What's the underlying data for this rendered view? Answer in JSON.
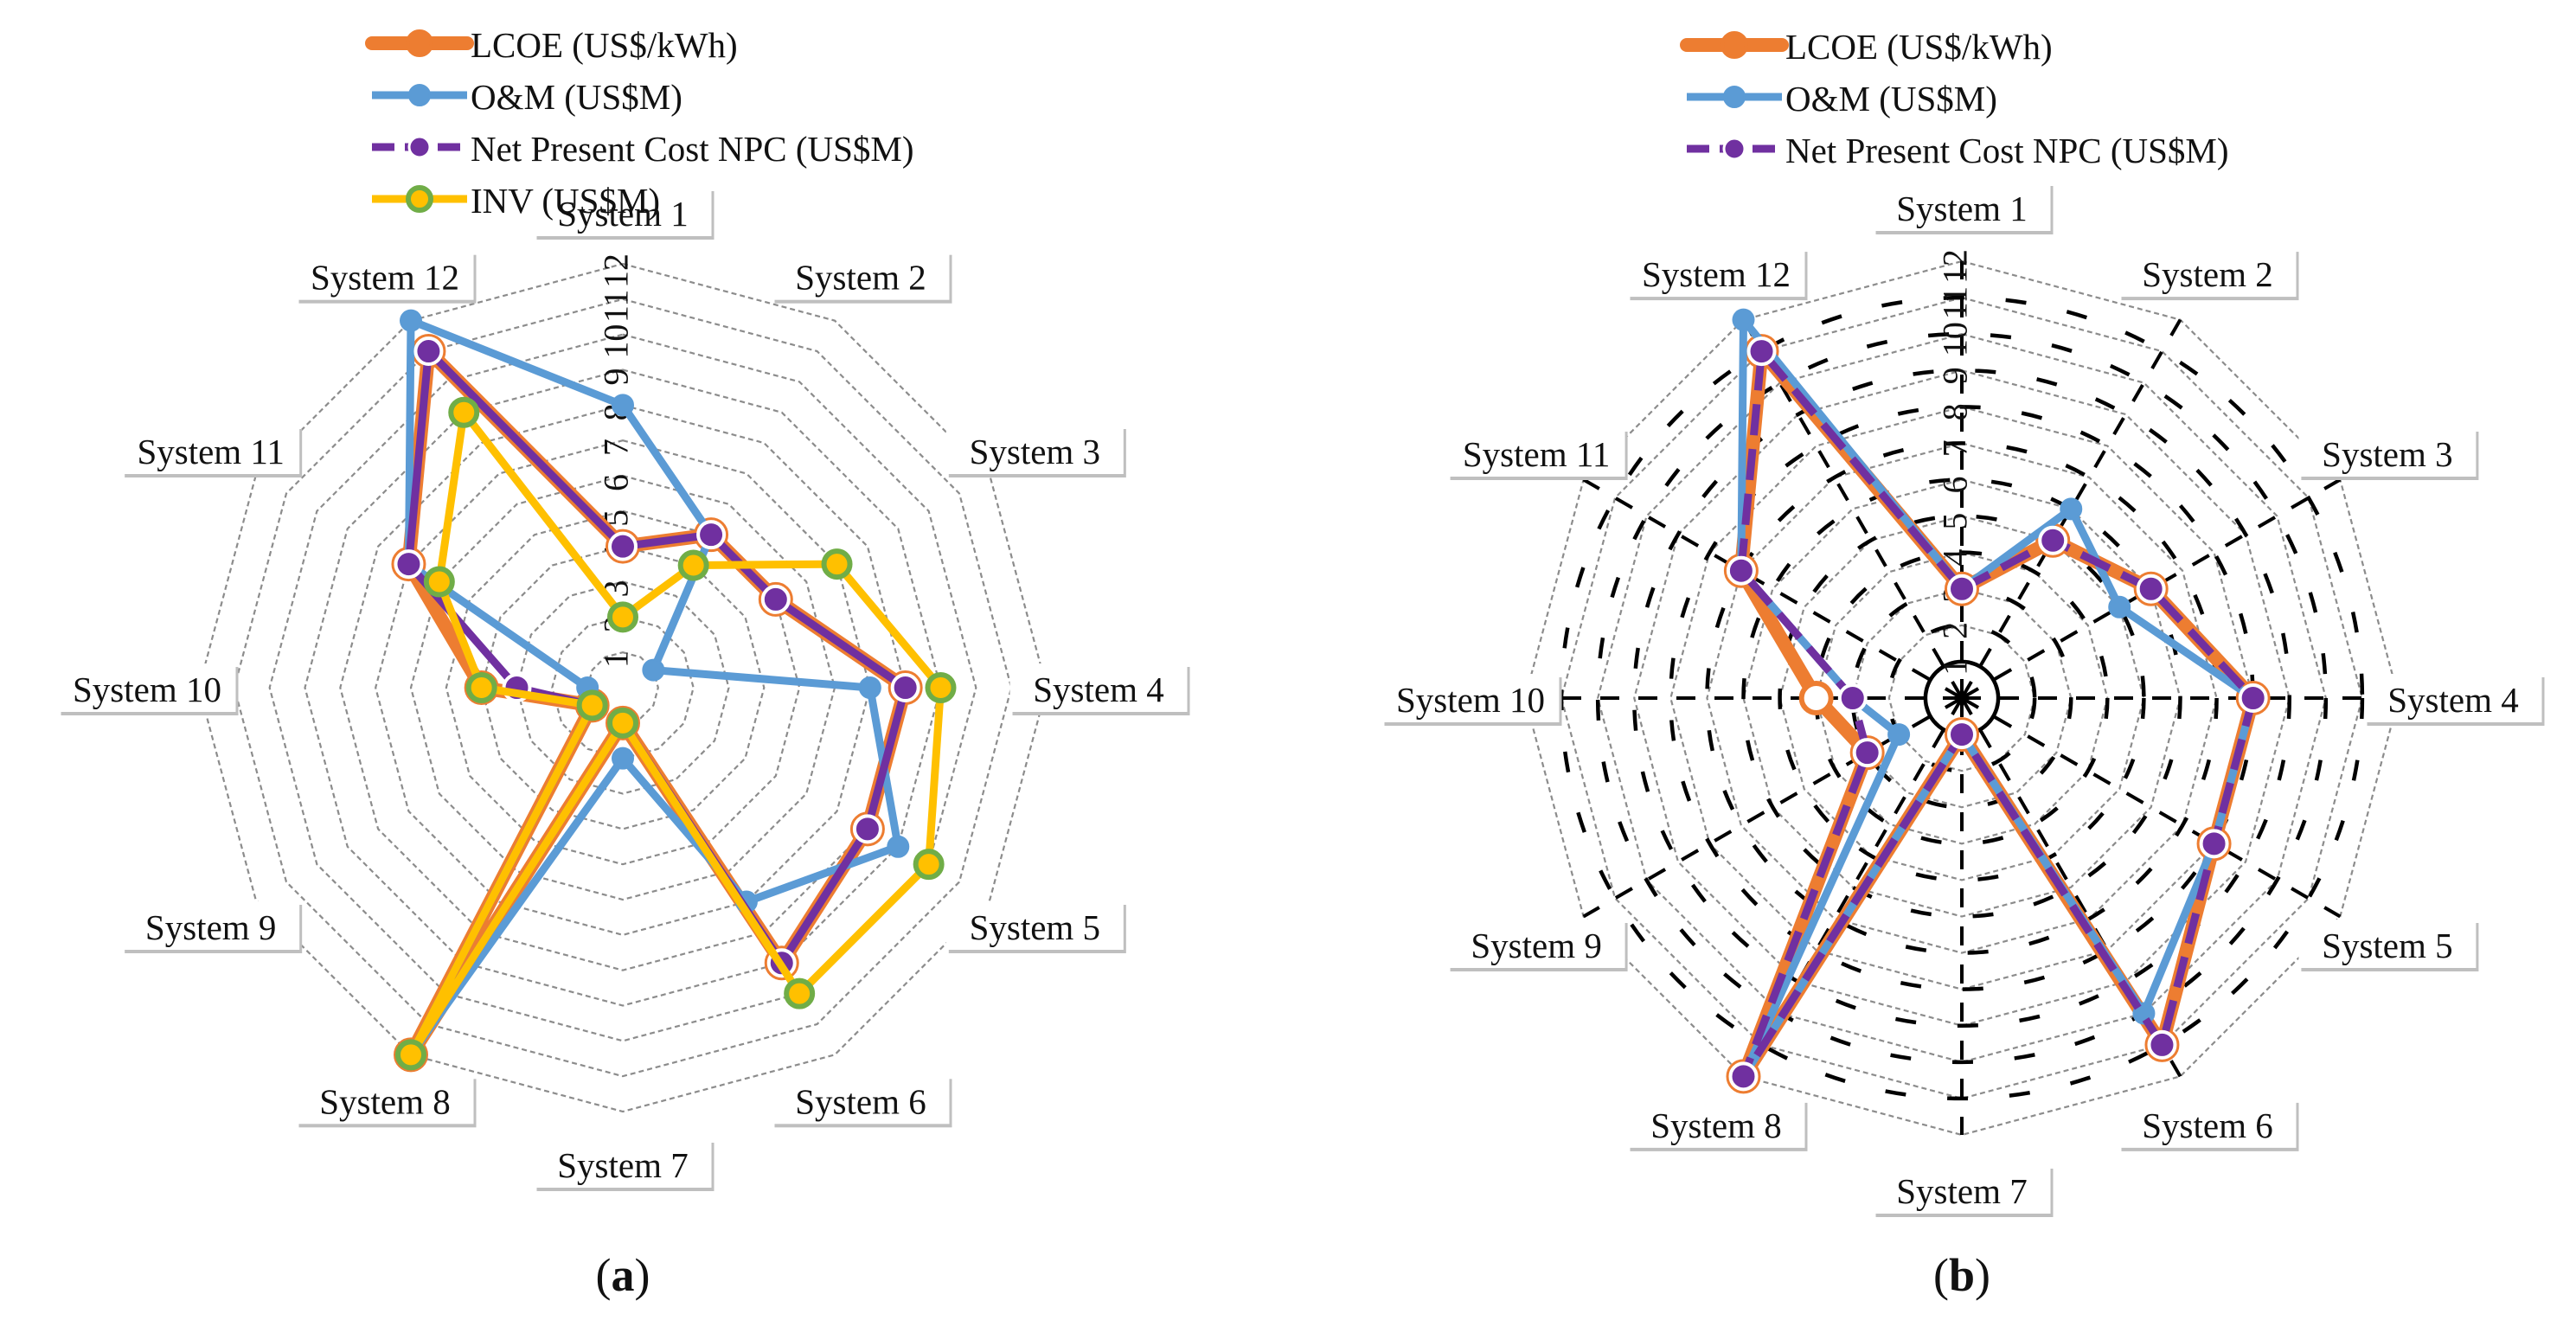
{
  "chart_data": [
    {
      "type": "radar",
      "panel_label": "(a)",
      "categories": [
        "System 1",
        "System 2",
        "System 3",
        "System 4",
        "System 5",
        "System 6",
        "System 7",
        "System 8",
        "System 9",
        "System 10",
        "System 11",
        "System 12"
      ],
      "ticks": [
        "1",
        "2",
        "3",
        "4",
        "5",
        "6",
        "7",
        "8",
        "9",
        "10",
        "11",
        "12"
      ],
      "rlim": [
        0,
        12
      ],
      "legend": "top",
      "series": [
        {
          "name": "LCOE (US$/kWh)",
          "color": "#ed7d31",
          "values": [
            4,
            5,
            5,
            8,
            8,
            9,
            1,
            12,
            1,
            4,
            7,
            11
          ]
        },
        {
          "name": "O&M (US$M)",
          "color": "#5b9bd5",
          "values": [
            8,
            5,
            1,
            7,
            9,
            7,
            2,
            12,
            1,
            1,
            7,
            12
          ]
        },
        {
          "name": "Net Present Cost NPC (US$M)",
          "color": "#7030a0",
          "values": [
            4,
            5,
            5,
            8,
            8,
            9,
            1,
            12,
            1,
            3,
            7,
            11
          ]
        },
        {
          "name": "INV (US$M)",
          "color": "#ffc000",
          "values": [
            2,
            4,
            7,
            9,
            10,
            10,
            1,
            12,
            1,
            4,
            6,
            9
          ]
        }
      ]
    },
    {
      "type": "radar",
      "panel_label": "(b)",
      "categories": [
        "System 1",
        "System 2",
        "System 3",
        "System 4",
        "System 5",
        "System 6",
        "System 7",
        "System 8",
        "System 9",
        "System 10",
        "System 11",
        "System 12"
      ],
      "ticks": [
        "1",
        "2",
        "3",
        "4",
        "5",
        "6",
        "7",
        "8",
        "9",
        "10",
        "11",
        "12"
      ],
      "rlim": [
        0,
        12
      ],
      "legend": "top",
      "series": [
        {
          "name": "LCOE (US$/kWh)",
          "color": "#ed7d31",
          "values": [
            3,
            5,
            6,
            8,
            8,
            11,
            1,
            12,
            3,
            4,
            7,
            11
          ]
        },
        {
          "name": "O&M (US$M)",
          "color": "#5b9bd5",
          "values": [
            3,
            6,
            5,
            8,
            8,
            10,
            1,
            12,
            2,
            3,
            7,
            12
          ]
        },
        {
          "name": "Net Present Cost NPC (US$M)",
          "color": "#7030a0",
          "values": [
            3,
            5,
            6,
            8,
            8,
            11,
            1,
            12,
            3,
            3,
            7,
            11
          ]
        }
      ]
    }
  ]
}
